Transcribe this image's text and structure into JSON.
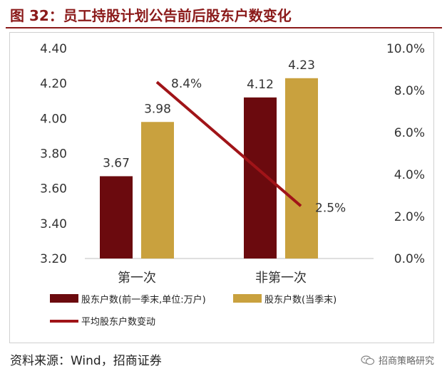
{
  "header": {
    "title": "图 32：员工持股计划公告前后股东户数变化"
  },
  "footer": {
    "source": "资料来源：Wind，招商证券",
    "watermark": "招商策略研究",
    "watermark_icon": "wechat-icon"
  },
  "colors": {
    "series1": "#6B0A0E",
    "series2": "#C9A13E",
    "line": "#A01418",
    "title": "#8B1A1A"
  },
  "chart_data": {
    "type": "bar",
    "categories": [
      "第一次",
      "非第一次"
    ],
    "series": [
      {
        "name": "股东户数(前一季末,单位:万户)",
        "type": "bar",
        "axis": "left",
        "values": [
          3.67,
          4.12
        ],
        "labels": [
          "3.67",
          "4.12"
        ]
      },
      {
        "name": "股东户数(当季末)",
        "type": "bar",
        "axis": "left",
        "values": [
          3.98,
          4.23
        ],
        "labels": [
          "3.98",
          "4.23"
        ]
      },
      {
        "name": "平均股东户数变动",
        "type": "line",
        "axis": "right",
        "values": [
          0.084,
          0.025
        ],
        "labels": [
          "8.4%",
          "2.5%"
        ]
      }
    ],
    "yleft": {
      "min": 3.2,
      "max": 4.4,
      "ticks": [
        "3.20",
        "3.40",
        "3.60",
        "3.80",
        "4.00",
        "4.20",
        "4.40"
      ]
    },
    "yright": {
      "min": 0,
      "max": 0.1,
      "ticks": [
        "0.0%",
        "2.0%",
        "4.0%",
        "6.0%",
        "8.0%",
        "10.0%"
      ]
    },
    "grid": false,
    "legend": "bottom"
  }
}
